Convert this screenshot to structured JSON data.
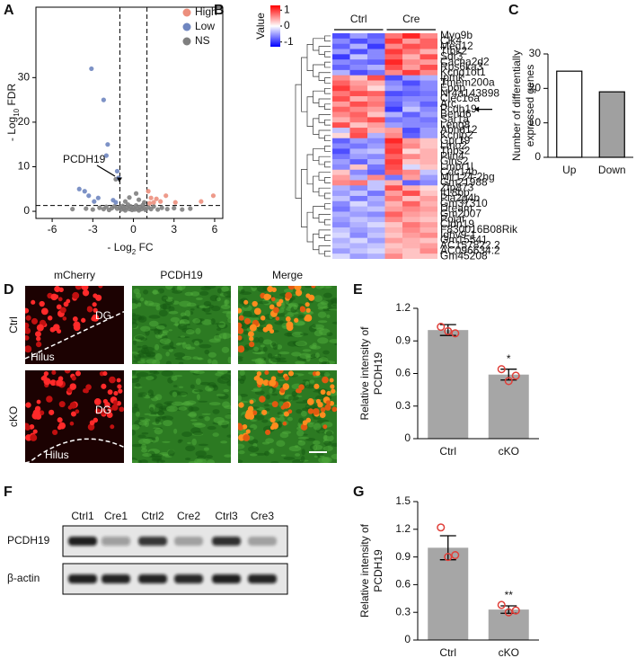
{
  "panel_labels": [
    "A",
    "B",
    "C",
    "D",
    "E",
    "F",
    "G"
  ],
  "chart_data": [
    {
      "type": "scatter",
      "xlabel": [
        "- Log",
        "2",
        " FC"
      ],
      "ylabel": [
        "- Log",
        "10",
        " FDR"
      ],
      "xlim": [
        -7.2,
        6.6
      ],
      "ylim": [
        -1.6,
        45.8
      ],
      "xticks": [
        -6,
        -3,
        0,
        3,
        6
      ],
      "yticks": [
        0,
        10,
        20,
        30
      ],
      "cutoff_x": [
        -1,
        1
      ],
      "cutoff_y": 1.3,
      "annotation": "PCDH19",
      "legend": "top-right",
      "series": [
        {
          "name": "High",
          "color": "#ec8f7d",
          "x": [
            1.1,
            1.3,
            1.5,
            1.7,
            2.0,
            2.4,
            3.1,
            5.0,
            5.9,
            1.2
          ],
          "values": [
            4.5,
            3.0,
            2.0,
            2.8,
            2.2,
            3.5,
            2.0,
            2.2,
            3.5,
            1.8
          ]
        },
        {
          "name": "Low",
          "color": "#6f86c0",
          "x": [
            -3.1,
            -2.2,
            -2.0,
            -1.9,
            -1.2,
            -1.1,
            -4.0,
            -3.6,
            -3.3,
            -2.6,
            -1.5,
            -1.3,
            -2.9
          ],
          "values": [
            32,
            25,
            12.5,
            15,
            9,
            7.5,
            5,
            4.5,
            3.5,
            3.0,
            2.5,
            2.0,
            2.2
          ]
        },
        {
          "name": "NS",
          "color": "#7f7f7f",
          "x": [
            -3.5,
            -3,
            -2.5,
            -2.2,
            -2,
            -1.8,
            -1.6,
            -1.4,
            -1.2,
            -1,
            -0.9,
            -0.8,
            -0.7,
            -0.6,
            -0.5,
            -0.4,
            -0.3,
            -0.2,
            -0.1,
            0,
            0.1,
            0.2,
            0.3,
            0.4,
            0.5,
            0.6,
            0.7,
            0.8,
            0.9,
            1.1,
            1.3,
            1.5,
            1.8,
            2.1,
            2.5,
            3,
            3.6,
            4.2,
            -4.5,
            -0.6,
            0.4,
            -0.3,
            0.8,
            -1.3,
            0.2
          ],
          "values": [
            0.6,
            0.4,
            0.8,
            0.5,
            1.0,
            0.3,
            0.7,
            1.1,
            0.6,
            0.9,
            0.4,
            1.2,
            0.6,
            0.2,
            0.9,
            1.5,
            0.5,
            1.1,
            0.3,
            0.8,
            0.4,
            1.3,
            0.6,
            0.2,
            1.0,
            0.5,
            1.4,
            0.7,
            0.3,
            0.9,
            0.5,
            1.1,
            0.4,
            0.8,
            0.5,
            0.7,
            0.4,
            0.6,
            0.5,
            2.2,
            2.6,
            3.1,
            2.0,
            7.2,
            4.0
          ]
        }
      ]
    },
    {
      "type": "heatmap",
      "legend_title": "Value",
      "zlim": [
        -1.3,
        1.3
      ],
      "zticks": [
        1,
        0,
        -1
      ],
      "colors": [
        "#0000ff",
        "#ffffff",
        "#ff0000"
      ],
      "groups": [
        "Ctrl",
        "Cre"
      ],
      "rows": [
        "Myo9b",
        "Clk4",
        "Med12",
        "Ttbk2",
        "Sdr3",
        "Cacna2d2",
        "Rps6ka3",
        "Kcnq1ot1",
        "Ipmk",
        "Tmem200a",
        "Epop",
        "Nr4a143898",
        "Clec16a",
        "Arc",
        "Pcdh19",
        "Bend6",
        "Sar1a",
        "Leng8",
        "Abhd12",
        "Kcnip2",
        "Gpr19",
        "Lmo2",
        "Thbs2",
        "Plin4",
        "Gins2",
        "Lmbr1l",
        "Cdc14b",
        "Mir124-2hg",
        "Gm21988",
        "Zfp873",
        "Il18bp",
        "Pla2g4b",
        "Gm37310",
        "Dream",
        "Gm2007",
        "Polaf",
        "Cldn19",
        "F830016B08Rik",
        "Ighv9-1",
        "Gm15541",
        "AC157822.2",
        "AC096634.2",
        "Gm45208"
      ],
      "values": [
        [
          -0.9,
          -0.5,
          -0.8,
          0.7,
          1.1,
          0.6
        ],
        [
          -0.6,
          -0.9,
          -0.7,
          1.0,
          0.5,
          0.8
        ],
        [
          -0.8,
          -0.4,
          -1.0,
          0.6,
          0.9,
          0.8
        ],
        [
          -0.5,
          -0.9,
          -0.6,
          1.0,
          0.7,
          0.4
        ],
        [
          -1.0,
          -0.3,
          -0.6,
          0.8,
          0.4,
          0.9
        ],
        [
          -0.6,
          -0.7,
          -0.8,
          1.1,
          0.6,
          0.5
        ],
        [
          -0.8,
          -0.6,
          -0.4,
          0.9,
          0.5,
          0.9
        ],
        [
          -0.4,
          -0.9,
          -0.7,
          0.6,
          1.0,
          0.6
        ],
        [
          0.6,
          0.3,
          0.9,
          -0.9,
          -0.5,
          -0.4
        ],
        [
          0.8,
          0.5,
          0.4,
          -0.6,
          -0.9,
          -0.6
        ],
        [
          1.0,
          0.6,
          0.2,
          -0.5,
          -0.7,
          -0.6
        ],
        [
          0.7,
          0.9,
          0.8,
          -0.9,
          -0.8,
          -0.7
        ],
        [
          0.9,
          0.4,
          0.6,
          -0.7,
          -0.6,
          -0.6
        ],
        [
          0.5,
          0.9,
          0.7,
          -0.8,
          -0.5,
          -0.8
        ],
        [
          0.8,
          0.6,
          0.5,
          -1.0,
          -0.3,
          -0.6
        ],
        [
          0.6,
          0.8,
          0.3,
          -0.4,
          -0.8,
          -0.5
        ],
        [
          0.4,
          0.7,
          0.9,
          -0.7,
          -0.6,
          -0.7
        ],
        [
          0.9,
          0.3,
          0.5,
          -0.5,
          -0.6,
          -0.6
        ],
        [
          -0.3,
          0.8,
          0.4,
          0.5,
          -0.9,
          -0.5
        ],
        [
          0.2,
          0.9,
          -0.4,
          0.6,
          -0.8,
          -0.5
        ],
        [
          -0.8,
          -0.5,
          -0.6,
          1.1,
          0.5,
          0.3
        ],
        [
          -0.6,
          -0.7,
          -0.5,
          0.9,
          0.6,
          0.3
        ],
        [
          -0.9,
          -0.4,
          -0.3,
          1.0,
          0.2,
          0.4
        ],
        [
          -0.7,
          -0.5,
          -0.6,
          0.8,
          0.6,
          0.4
        ],
        [
          -0.5,
          -0.8,
          -0.4,
          1.0,
          0.3,
          0.4
        ],
        [
          -0.6,
          0.3,
          -0.7,
          0.9,
          -0.2,
          0.3
        ],
        [
          0.3,
          -0.6,
          -0.8,
          0.8,
          0.6,
          -0.3
        ],
        [
          0.5,
          -0.4,
          0.6,
          -0.7,
          0.5,
          -0.5
        ],
        [
          0.6,
          0.7,
          -0.3,
          0.4,
          -0.8,
          -0.6
        ],
        [
          -0.4,
          -0.6,
          -0.3,
          0.9,
          0.4,
          0.2
        ],
        [
          -0.5,
          -0.3,
          -0.7,
          0.5,
          0.9,
          0.3
        ],
        [
          -0.3,
          -0.7,
          -0.4,
          0.7,
          0.3,
          0.5
        ],
        [
          -0.6,
          -0.2,
          -0.5,
          0.4,
          0.8,
          0.4
        ],
        [
          -0.7,
          -0.4,
          -0.3,
          0.5,
          0.6,
          0.5
        ],
        [
          -0.4,
          -0.5,
          -0.6,
          0.8,
          0.5,
          0.4
        ],
        [
          -0.5,
          -0.3,
          -0.4,
          0.6,
          0.4,
          0.3
        ],
        [
          -0.6,
          -0.4,
          -0.2,
          0.3,
          0.7,
          0.5
        ],
        [
          -0.3,
          -0.5,
          -0.4,
          0.4,
          0.6,
          0.4
        ],
        [
          -0.2,
          -0.6,
          -0.3,
          0.3,
          0.5,
          0.6
        ],
        [
          -0.4,
          -0.2,
          -0.5,
          0.5,
          0.4,
          0.3
        ],
        [
          -0.3,
          -0.4,
          -0.3,
          0.3,
          0.4,
          0.5
        ],
        [
          -0.5,
          -0.3,
          -0.2,
          0.4,
          0.3,
          0.6
        ],
        [
          -0.2,
          -0.5,
          -0.4,
          0.6,
          0.3,
          0.3
        ]
      ]
    },
    {
      "type": "bar",
      "ylabel": [
        "Number of differentially",
        "expressed genes"
      ],
      "categories": [
        "Up",
        "Down"
      ],
      "values": [
        25,
        19
      ],
      "colors": [
        "#ffffff",
        "#a0a0a0"
      ],
      "edgecolor": "#000000",
      "ylim": [
        0,
        30
      ],
      "yticks": [
        0,
        10,
        20,
        30
      ]
    },
    {
      "type": "bar",
      "ylabel": [
        "Relative intensity of",
        "PCDH19"
      ],
      "categories": [
        "Ctrl",
        "cKO"
      ],
      "values": [
        1.0,
        0.59
      ],
      "errors": [
        0.05,
        0.05
      ],
      "points": [
        [
          1.03,
          0.97,
          0.99
        ],
        [
          0.64,
          0.58,
          0.53
        ]
      ],
      "point_color": "#e0403a",
      "color": "#a6a6a6",
      "annotation": "*",
      "ylim": [
        0,
        1.2
      ],
      "yticks": [
        0,
        0.3,
        0.6,
        0.9,
        1.2
      ]
    },
    {
      "type": "bar",
      "ylabel": [
        "Relative intensity of",
        "PCDH19"
      ],
      "categories": [
        "Ctrl",
        "cKO"
      ],
      "values": [
        1.0,
        0.33
      ],
      "errors": [
        0.13,
        0.04
      ],
      "points": [
        [
          1.22,
          0.92,
          0.9
        ],
        [
          0.38,
          0.32,
          0.3
        ]
      ],
      "point_color": "#e0403a",
      "color": "#a6a6a6",
      "annotation": "**",
      "ylim": [
        0,
        1.5
      ],
      "yticks": [
        0,
        0.3,
        0.6,
        0.9,
        1.2,
        1.5
      ]
    }
  ],
  "panel_d": {
    "columns": [
      "mCherry",
      "PCDH19",
      "Merge"
    ],
    "rows": [
      "Ctrl",
      "cKO"
    ],
    "regions": [
      "DG",
      "Hilus"
    ]
  },
  "panel_f": {
    "lanes": [
      "Ctrl1",
      "Cre1",
      "Ctrl2",
      "Cre2",
      "Ctrl3",
      "Cre3"
    ],
    "rows": [
      "PCDH19",
      "β-actin"
    ]
  }
}
